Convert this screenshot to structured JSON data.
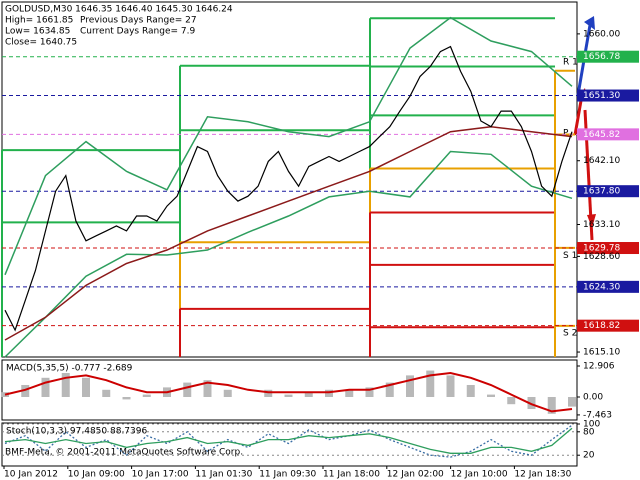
{
  "header": {
    "symbol_line": "GOLDUSD,M30  1646.35 1646.40 1645.30 1646.24",
    "high": "High= 1661.85",
    "low": "Low= 1634.85",
    "close": "Close= 1640.75",
    "prev_range": "Previous Days Range= 27",
    "curr_range": "Current Days Range= 7.9"
  },
  "footer": "BMF-Meta, © 2001-2011 MetaQuotes Software Corp.",
  "x_labels": [
    "10 Jan 2012",
    "10 Jan 09:00",
    "10 Jan 17:00",
    "11 Jan 01:30",
    "11 Jan 09:30",
    "11 Jan 18:00",
    "12 Jan 02:00",
    "12 Jan 10:00",
    "12 Jan 18:30"
  ],
  "chart_data": [
    {
      "type": "line",
      "ylim": [
        1614.4,
        1664.5
      ],
      "yticks": [
        {
          "value": 1660,
          "label": "1660.00"
        },
        {
          "value": 1642.1,
          "label": "1642.10"
        },
        {
          "value": 1633.1,
          "label": "1633.10"
        },
        {
          "value": 1628.6,
          "label": "1628.60"
        },
        {
          "value": 1615.1,
          "label": "1615.10"
        }
      ],
      "levels": [
        {
          "value": 1656.78,
          "color": "#22b14c"
        },
        {
          "value": 1651.3,
          "label": "1651.30",
          "color": "#1a1aa0"
        },
        {
          "value": 1645.82,
          "color": "#e070e0"
        },
        {
          "value": 1637.8,
          "label": "1637.80",
          "color": "#1a1aa0"
        },
        {
          "value": 1629.78,
          "color": "#d01010"
        },
        {
          "value": 1624.3,
          "label": "1624.30",
          "color": "#1a1aa0"
        },
        {
          "value": 1618.82,
          "color": "#d01010"
        }
      ],
      "pivots": [
        {
          "levels": [
            {
              "value": 1643.6,
              "color": "#22b14c"
            },
            {
              "value": 1633.4,
              "color": "#22b14c"
            }
          ]
        },
        {
          "levels": [
            {
              "value": 1655.5,
              "color": "#22b14c"
            },
            {
              "value": 1646.4,
              "color": "#22b14c"
            },
            {
              "value": 1630.6,
              "color": "#e8a000"
            },
            {
              "value": 1621.2,
              "color": "#d01010"
            }
          ]
        },
        {
          "levels": [
            {
              "value": 1662.2,
              "color": "#22b14c"
            },
            {
              "value": 1655.4,
              "color": "#22b14c"
            },
            {
              "value": 1648.5,
              "color": "#22b14c"
            },
            {
              "value": 1641,
              "color": "#e8a000"
            },
            {
              "value": 1634.8,
              "color": "#d01010"
            },
            {
              "value": 1627.4,
              "color": "#d01010"
            },
            {
              "value": 1618.6,
              "color": "#d01010"
            }
          ]
        },
        {
          "levels": [
            {
              "value": 1654.8,
              "color": "#e8a000"
            },
            {
              "value": 1645.8,
              "color": "#e8a000"
            },
            {
              "value": 1629.8,
              "color": "#e8a000"
            },
            {
              "value": 1618.8,
              "color": "#e8a000"
            }
          ]
        }
      ],
      "pivot_labels": [
        {
          "label": "R 1",
          "value": 1656
        },
        {
          "label": "P",
          "value": 1646
        },
        {
          "label": "S 1",
          "value": 1628.7
        },
        {
          "label": "S 2",
          "value": 1617.8
        }
      ],
      "series": [
        {
          "color": "#2e9e5e",
          "values": [
            1626,
            1640,
            1644.8,
            1640.6,
            1638,
            1648.3,
            1647.6,
            1646.2,
            1645.5,
            1647.6,
            1658,
            1662.3,
            1659,
            1657.5,
            1652.6
          ]
        },
        {
          "color": "#2e9e5e",
          "values": [
            1614.4,
            1620,
            1625.8,
            1628.9,
            1628.8,
            1629.5,
            1632,
            1634.3,
            1637,
            1637.8,
            1637,
            1643.4,
            1643,
            1638.5,
            1636.8
          ]
        },
        {
          "color": "#8b1a1a",
          "values": [
            1616.8,
            1620,
            1624.5,
            1627.6,
            1629.5,
            1632.2,
            1634.3,
            1636.4,
            1638.5,
            1640.6,
            1643.4,
            1646.2,
            1646.9,
            1646.2,
            1645.5
          ]
        },
        {
          "color": "#000000",
          "values": [
            1621,
            1618.2,
            1622.4,
            1626.6,
            1632.2,
            1637.8,
            1640,
            1633.6,
            1630.8,
            1631.5,
            1632.2,
            1632.9,
            1632.2,
            1634.3,
            1634.3,
            1633.6,
            1635.7,
            1637.1,
            1640.6,
            1644.1,
            1643.4,
            1640,
            1637.8,
            1636.4,
            1637.1,
            1638.5,
            1642,
            1643.4,
            1640.6,
            1638.5,
            1641.3,
            1642,
            1642.7,
            1642,
            1642.7,
            1643.4,
            1644.1,
            1645.5,
            1646.9,
            1649.1,
            1651.2,
            1654,
            1655.4,
            1657.5,
            1658.2,
            1654.7,
            1651.9,
            1647.7,
            1646.9,
            1649.1,
            1649.1,
            1646.9,
            1643.4,
            1638.5,
            1637.1,
            1642,
            1646.2
          ]
        }
      ]
    },
    {
      "type": "macd",
      "title": "MACD(5,35,5) -0.777 -2.689",
      "ylim": [
        -9.58,
        14.99
      ],
      "yticks": [
        12.906,
        {
          "value": 0,
          "label": "0.00"
        },
        -7.463
      ],
      "histogram": {
        "color": "#b8b8b8",
        "values": [
          2,
          5,
          8,
          10,
          8,
          3,
          -1,
          1,
          4,
          6,
          7,
          3,
          0,
          3,
          1,
          2,
          3,
          3,
          4,
          6,
          9,
          11,
          9,
          5,
          1,
          -3,
          -5,
          -7,
          -4
        ]
      },
      "signal": {
        "color": "#cc0000",
        "values": [
          1,
          3,
          6,
          8,
          9,
          7,
          4,
          2,
          2,
          4,
          6,
          5,
          3,
          2,
          2,
          2,
          2,
          3,
          3,
          5,
          7,
          9,
          10,
          8,
          5,
          1,
          -3,
          -6,
          -5
        ]
      }
    },
    {
      "type": "stoch",
      "title": "Stoch(10,3,3) 97.4850 88.7396",
      "ylim": [
        0,
        100
      ],
      "yticks": [
        100,
        80,
        20
      ],
      "series": [
        {
          "color": "#3a6ea5",
          "values": [
            50,
            70,
            30,
            80,
            40,
            60,
            20,
            70,
            50,
            80,
            30,
            60,
            40,
            75,
            50,
            85,
            60,
            70,
            85,
            60,
            40,
            20,
            15,
            30,
            60,
            30,
            20,
            60,
            97
          ]
        },
        {
          "color": "#2e9e5e",
          "values": [
            55,
            60,
            50,
            60,
            50,
            55,
            40,
            50,
            55,
            65,
            50,
            55,
            45,
            60,
            60,
            70,
            65,
            70,
            75,
            65,
            50,
            35,
            25,
            25,
            40,
            40,
            30,
            45,
            89
          ]
        }
      ]
    }
  ]
}
